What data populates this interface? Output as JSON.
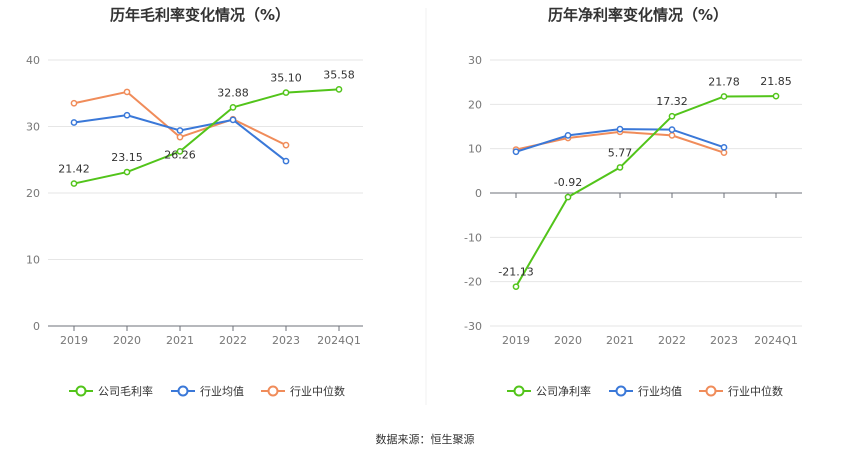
{
  "footer": {
    "source": "数据来源：恒生聚源"
  },
  "chart_data": [
    {
      "type": "line",
      "title": "历年毛利率变化情况（%）",
      "categories": [
        "2019",
        "2020",
        "2021",
        "2022",
        "2023",
        "2024Q1"
      ],
      "ylim": [
        0,
        40
      ],
      "yticks": [
        0,
        10,
        20,
        30,
        40
      ],
      "grid": true,
      "legend_position": "bottom-center",
      "series": [
        {
          "name": "公司毛利率",
          "color": "#52c41a",
          "labeled": true,
          "values": [
            21.42,
            23.15,
            26.26,
            32.88,
            35.1,
            35.58
          ],
          "labels": [
            "21.42",
            "23.15",
            "26.26",
            "32.88",
            "35.10",
            "35.58"
          ]
        },
        {
          "name": "行业均值",
          "color": "#3a78d8",
          "labeled": false,
          "values": [
            30.6,
            31.7,
            29.4,
            31.0,
            24.8,
            null
          ]
        },
        {
          "name": "行业中位数",
          "color": "#f08c5a",
          "labeled": false,
          "values": [
            33.5,
            35.2,
            28.4,
            31.1,
            27.2,
            null
          ]
        }
      ]
    },
    {
      "type": "line",
      "title": "历年净利率变化情况（%）",
      "categories": [
        "2019",
        "2020",
        "2021",
        "2022",
        "2023",
        "2024Q1"
      ],
      "ylim": [
        -30,
        30
      ],
      "yticks": [
        -30,
        -20,
        -10,
        0,
        10,
        20,
        30
      ],
      "grid": true,
      "legend_position": "bottom-center",
      "series": [
        {
          "name": "公司净利率",
          "color": "#52c41a",
          "labeled": true,
          "values": [
            -21.13,
            -0.92,
            5.77,
            17.32,
            21.78,
            21.85
          ],
          "labels": [
            "-21.13",
            "-0.92",
            "5.77",
            "17.32",
            "21.78",
            "21.85"
          ]
        },
        {
          "name": "行业均值",
          "color": "#3a78d8",
          "labeled": false,
          "values": [
            9.3,
            13.0,
            14.4,
            14.3,
            10.3,
            null
          ]
        },
        {
          "name": "行业中位数",
          "color": "#f08c5a",
          "labeled": false,
          "values": [
            9.8,
            12.4,
            13.8,
            13.0,
            9.1,
            null
          ]
        }
      ]
    }
  ]
}
